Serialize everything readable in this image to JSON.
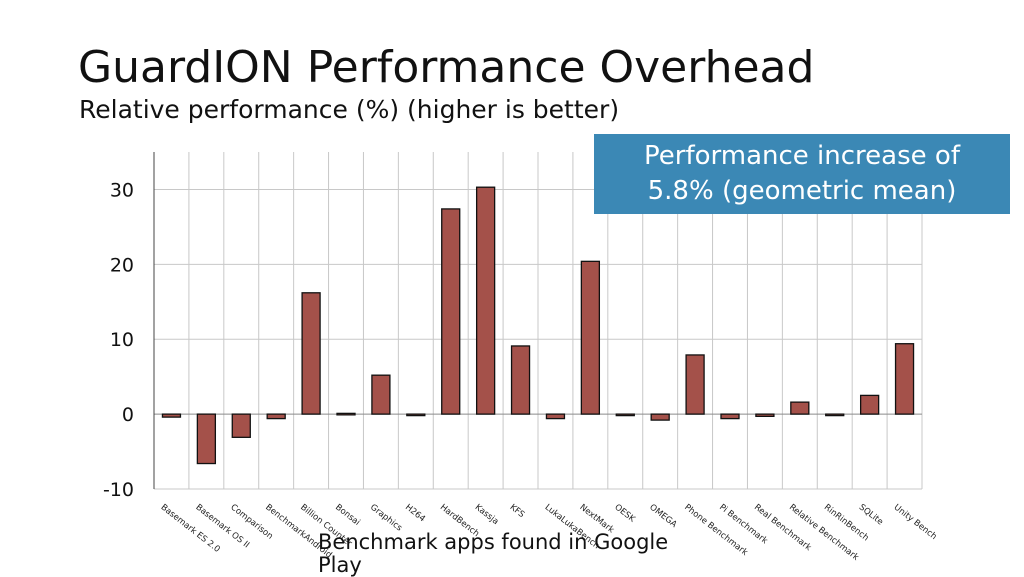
{
  "title": "GuardION Performance Overhead",
  "subtitle": "Relative performance (%) (higher is better)",
  "callout": {
    "line1": "Performance increase of",
    "line2": "5.8% (geometric mean)"
  },
  "x_caption": "Benchmark apps found in Google Play",
  "colors": {
    "bar_fill": "#a4514a",
    "bar_stroke": "#111111",
    "grid": "#c8c8c8",
    "callout_bg": "#3b88b5"
  },
  "chart_data": {
    "type": "bar",
    "categories": [
      "Basemark ES 2.0",
      "Basemark OS II",
      "Comparison",
      "BenchmarkAndroid",
      "Billion Counter",
      "Bonsai",
      "Graphics",
      "H264",
      "HardBench",
      "Kassja",
      "KFS",
      "LukaLukaBench",
      "NextMark",
      "OESK",
      "OMEGA",
      "Phone Benchmark",
      "Pi Benchmark",
      "Real Benchmark",
      "Relative Benchmark",
      "RinRinBench",
      "SQLite",
      "Unity Bench"
    ],
    "values": [
      -0.4,
      -6.6,
      -3.1,
      -0.6,
      16.2,
      0.1,
      5.2,
      -0.1,
      27.4,
      30.3,
      9.1,
      -0.6,
      20.4,
      -0.1,
      -0.8,
      7.9,
      -0.6,
      -0.3,
      1.6,
      -0.2,
      2.5,
      9.4
    ],
    "ylim": [
      -10,
      35
    ],
    "yticks": [
      -10,
      0,
      10,
      20,
      30
    ],
    "ylabel": "",
    "xlabel": "Benchmark apps found in Google Play",
    "grid": true,
    "legend": "none"
  }
}
